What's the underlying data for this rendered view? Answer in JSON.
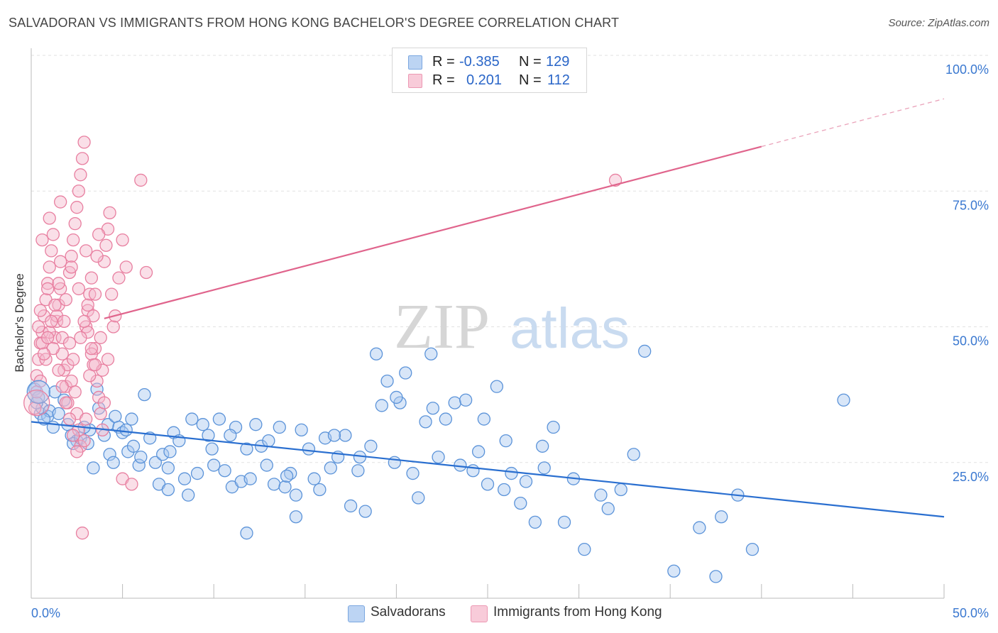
{
  "title": "SALVADORAN VS IMMIGRANTS FROM HONG KONG BACHELOR'S DEGREE CORRELATION CHART",
  "source": "Source: ZipAtlas.com",
  "watermark": {
    "zip": "ZIP",
    "atlas": "atlas"
  },
  "legend_top": [
    {
      "r_label": "R =",
      "r_value": "-0.385",
      "n_label": "N =",
      "n_value": "129",
      "color": "#a9c8f0"
    },
    {
      "r_label": "R =",
      "r_value": "0.201",
      "n_label": "N =",
      "n_value": "112",
      "color": "#f5b8cb"
    }
  ],
  "legend_bottom": [
    {
      "label": "Salvadorans",
      "color": "#a9c8f0"
    },
    {
      "label": "Immigrants from Hong Kong",
      "color": "#f5b8cb"
    }
  ],
  "chart_data": {
    "type": "scatter",
    "title": "SALVADORAN VS IMMIGRANTS FROM HONG KONG BACHELOR'S DEGREE CORRELATION CHART",
    "xlabel": "",
    "ylabel": "Bachelor's Degree",
    "xlim": [
      0,
      50
    ],
    "ylim": [
      0,
      100
    ],
    "x_tick_labels": [
      "0.0%",
      "50.0%"
    ],
    "y_tick_labels": [
      "25.0%",
      "50.0%",
      "75.0%",
      "100.0%"
    ],
    "y_ticks": [
      25,
      50,
      75,
      100
    ],
    "grid": true,
    "series": [
      {
        "name": "Salvadorans",
        "color": "#5b93d9",
        "fill": "#a9c8f0",
        "trend": {
          "x0": 0,
          "y0": 32.5,
          "x1": 50,
          "y1": 15.0,
          "color": "#2a6fd0"
        },
        "points": [
          [
            0.2,
            38.5
          ],
          [
            0.4,
            37
          ],
          [
            0.5,
            34
          ],
          [
            0.6,
            35
          ],
          [
            0.9,
            33.5
          ],
          [
            1.0,
            34.5
          ],
          [
            1.2,
            31.5
          ],
          [
            1.3,
            38
          ],
          [
            1.5,
            34
          ],
          [
            2.2,
            30
          ],
          [
            2.5,
            29
          ],
          [
            2.3,
            28.5
          ],
          [
            2.7,
            29.5
          ],
          [
            3.2,
            31
          ],
          [
            3.4,
            24
          ],
          [
            3.6,
            38.5
          ],
          [
            3.7,
            35
          ],
          [
            4.0,
            30
          ],
          [
            4.2,
            32
          ],
          [
            4.3,
            26.5
          ],
          [
            4.6,
            33.5
          ],
          [
            4.8,
            31.5
          ],
          [
            5.0,
            30.5
          ],
          [
            5.3,
            27
          ],
          [
            5.5,
            33
          ],
          [
            5.6,
            28
          ],
          [
            5.9,
            24.5
          ],
          [
            6.2,
            37.5
          ],
          [
            6.5,
            29.5
          ],
          [
            6.8,
            25
          ],
          [
            7.0,
            21
          ],
          [
            7.2,
            26.5
          ],
          [
            7.5,
            24
          ],
          [
            7.8,
            30.5
          ],
          [
            8.1,
            29
          ],
          [
            8.6,
            19
          ],
          [
            8.8,
            33
          ],
          [
            9.1,
            23
          ],
          [
            9.4,
            32
          ],
          [
            9.7,
            30
          ],
          [
            10.0,
            24.5
          ],
          [
            10.3,
            33
          ],
          [
            10.6,
            23.5
          ],
          [
            11.0,
            20.5
          ],
          [
            11.2,
            31.5
          ],
          [
            11.5,
            21.5
          ],
          [
            11.8,
            27.5
          ],
          [
            12.0,
            22
          ],
          [
            12.3,
            32
          ],
          [
            12.6,
            28
          ],
          [
            13.0,
            29
          ],
          [
            13.3,
            21
          ],
          [
            13.6,
            31.5
          ],
          [
            13.9,
            20.5
          ],
          [
            14.2,
            23
          ],
          [
            14.5,
            19
          ],
          [
            14.8,
            31
          ],
          [
            15.2,
            27.5
          ],
          [
            15.5,
            22
          ],
          [
            15.8,
            20
          ],
          [
            16.1,
            29.5
          ],
          [
            16.4,
            24
          ],
          [
            16.8,
            26
          ],
          [
            17.2,
            30
          ],
          [
            17.5,
            17
          ],
          [
            17.9,
            23.5
          ],
          [
            18.3,
            16
          ],
          [
            18.6,
            28
          ],
          [
            18.9,
            45
          ],
          [
            19.2,
            35.5
          ],
          [
            19.5,
            40
          ],
          [
            19.9,
            25
          ],
          [
            20.2,
            36
          ],
          [
            20.5,
            41.5
          ],
          [
            20.9,
            23
          ],
          [
            21.2,
            18.5
          ],
          [
            21.6,
            32.5
          ],
          [
            21.9,
            45
          ],
          [
            22.3,
            26
          ],
          [
            22.7,
            33
          ],
          [
            23.2,
            36
          ],
          [
            23.5,
            24.5
          ],
          [
            23.8,
            36.5
          ],
          [
            24.2,
            23.5
          ],
          [
            24.5,
            27
          ],
          [
            25.0,
            21
          ],
          [
            25.5,
            39
          ],
          [
            25.9,
            20
          ],
          [
            26.3,
            23
          ],
          [
            26.8,
            17.5
          ],
          [
            27.1,
            21.5
          ],
          [
            27.6,
            14
          ],
          [
            28.1,
            24
          ],
          [
            28.6,
            31.5
          ],
          [
            29.2,
            14
          ],
          [
            29.7,
            22
          ],
          [
            30.3,
            9
          ],
          [
            31.2,
            19
          ],
          [
            31.6,
            16.5
          ],
          [
            32.3,
            20
          ],
          [
            33.0,
            26.5
          ],
          [
            33.6,
            45.5
          ],
          [
            35.2,
            5
          ],
          [
            36.6,
            13
          ],
          [
            37.5,
            4
          ],
          [
            37.8,
            15
          ],
          [
            38.7,
            19
          ],
          [
            39.5,
            9
          ],
          [
            1.8,
            36.5
          ],
          [
            2.0,
            32
          ],
          [
            2.9,
            31.5
          ],
          [
            3.1,
            28.5
          ],
          [
            4.5,
            25
          ],
          [
            5.2,
            31
          ],
          [
            6.0,
            26
          ],
          [
            7.6,
            27
          ],
          [
            8.4,
            22
          ],
          [
            9.9,
            27.5
          ],
          [
            10.9,
            30
          ],
          [
            12.9,
            24.5
          ],
          [
            14.0,
            22.5
          ],
          [
            16.6,
            30
          ],
          [
            18.0,
            26
          ],
          [
            20.0,
            37
          ],
          [
            22.0,
            35
          ],
          [
            24.8,
            33
          ],
          [
            26.0,
            29
          ],
          [
            28.0,
            28
          ],
          [
            44.5,
            36.5
          ],
          [
            11.8,
            12
          ],
          [
            14.5,
            15
          ],
          [
            7.5,
            20
          ],
          [
            0.3,
            36
          ],
          [
            0.7,
            33
          ]
        ]
      },
      {
        "name": "Immigrants from Hong Kong",
        "color": "#e87fa0",
        "fill": "#f5b8cb",
        "trend": {
          "x0": 0,
          "y0": 48.0,
          "x1": 50,
          "y1": 92.0,
          "solid_until": 40,
          "color": "#e0648c"
        },
        "points": [
          [
            0.2,
            35
          ],
          [
            0.3,
            41
          ],
          [
            0.4,
            44
          ],
          [
            0.5,
            47
          ],
          [
            0.6,
            49
          ],
          [
            0.7,
            52
          ],
          [
            0.8,
            55
          ],
          [
            0.9,
            58
          ],
          [
            1.0,
            61
          ],
          [
            1.1,
            64
          ],
          [
            1.2,
            67
          ],
          [
            1.3,
            48
          ],
          [
            1.4,
            51
          ],
          [
            1.5,
            54
          ],
          [
            1.6,
            57
          ],
          [
            1.7,
            45
          ],
          [
            1.8,
            42
          ],
          [
            1.9,
            39
          ],
          [
            2.0,
            36
          ],
          [
            2.1,
            60
          ],
          [
            2.2,
            63
          ],
          [
            2.3,
            66
          ],
          [
            2.4,
            69
          ],
          [
            2.5,
            72
          ],
          [
            2.6,
            75
          ],
          [
            2.7,
            78
          ],
          [
            2.8,
            81
          ],
          [
            2.9,
            84
          ],
          [
            3.0,
            50
          ],
          [
            3.1,
            53
          ],
          [
            3.2,
            56
          ],
          [
            3.3,
            59
          ],
          [
            3.4,
            43
          ],
          [
            3.5,
            46
          ],
          [
            3.6,
            40
          ],
          [
            3.7,
            37
          ],
          [
            3.8,
            34
          ],
          [
            3.9,
            31
          ],
          [
            4.0,
            62
          ],
          [
            4.1,
            65
          ],
          [
            4.2,
            68
          ],
          [
            4.3,
            71
          ],
          [
            4.5,
            50
          ],
          [
            5.0,
            22
          ],
          [
            5.2,
            61
          ],
          [
            5.5,
            21
          ],
          [
            6.0,
            77
          ],
          [
            6.3,
            60
          ],
          [
            0.4,
            50
          ],
          [
            0.5,
            53
          ],
          [
            0.6,
            47
          ],
          [
            0.8,
            44
          ],
          [
            0.9,
            57
          ],
          [
            1.0,
            49
          ],
          [
            1.2,
            46
          ],
          [
            1.4,
            52
          ],
          [
            1.5,
            58
          ],
          [
            1.6,
            62
          ],
          [
            1.7,
            48
          ],
          [
            1.8,
            51
          ],
          [
            1.9,
            55
          ],
          [
            2.0,
            43
          ],
          [
            2.1,
            47
          ],
          [
            2.2,
            40
          ],
          [
            2.3,
            44
          ],
          [
            2.4,
            38
          ],
          [
            2.5,
            34
          ],
          [
            2.6,
            31
          ],
          [
            2.7,
            28
          ],
          [
            2.8,
            12
          ],
          [
            2.9,
            29
          ],
          [
            3.0,
            33
          ],
          [
            3.1,
            49
          ],
          [
            3.2,
            41
          ],
          [
            3.3,
            45
          ],
          [
            3.4,
            52
          ],
          [
            3.5,
            56
          ],
          [
            3.6,
            63
          ],
          [
            3.7,
            67
          ],
          [
            3.8,
            48
          ],
          [
            3.9,
            42
          ],
          [
            4.0,
            36
          ],
          [
            4.2,
            44
          ],
          [
            4.4,
            56
          ],
          [
            4.6,
            52
          ],
          [
            4.8,
            59
          ],
          [
            5.0,
            66
          ],
          [
            0.3,
            38
          ],
          [
            0.5,
            40
          ],
          [
            0.7,
            45
          ],
          [
            0.9,
            48
          ],
          [
            1.1,
            51
          ],
          [
            1.3,
            54
          ],
          [
            1.5,
            42
          ],
          [
            1.7,
            39
          ],
          [
            1.9,
            36
          ],
          [
            2.1,
            33
          ],
          [
            2.3,
            30
          ],
          [
            2.5,
            27
          ],
          [
            2.7,
            48
          ],
          [
            2.9,
            51
          ],
          [
            3.1,
            54
          ],
          [
            3.3,
            46
          ],
          [
            3.5,
            43
          ],
          [
            32.0,
            77
          ],
          [
            0.6,
            66
          ],
          [
            1.0,
            70
          ],
          [
            1.6,
            73
          ],
          [
            2.2,
            61
          ],
          [
            2.6,
            57
          ],
          [
            3.0,
            64
          ]
        ]
      }
    ]
  }
}
